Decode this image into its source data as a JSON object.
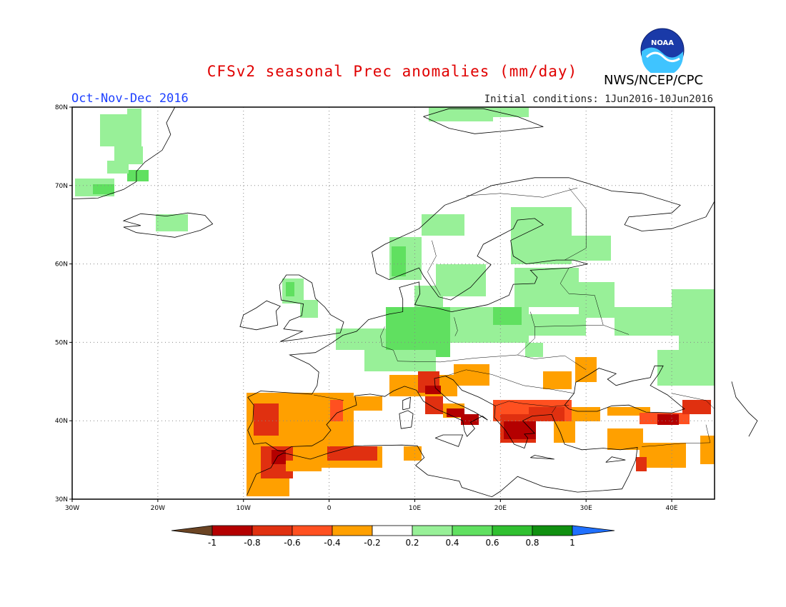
{
  "header": {
    "title": "CFSv2 seasonal Prec anomalies (mm/day)",
    "season": "Oct-Nov-Dec 2016",
    "initial_conditions": "Initial conditions: 1Jun2016-10Jun2016",
    "org": "NWS/NCEP/CPC",
    "logo_text": "NOAA"
  },
  "map": {
    "lon_range": [
      -30,
      45
    ],
    "lat_range": [
      30,
      80
    ],
    "lat_labels": [
      "30N",
      "40N",
      "50N",
      "60N",
      "70N",
      "80N"
    ],
    "lon_labels": [
      "30W",
      "20W",
      "10W",
      "0",
      "10E",
      "20E",
      "30E",
      "40E"
    ]
  },
  "colorbar": {
    "labels": [
      "-1",
      "-0.8",
      "-0.6",
      "-0.4",
      "-0.2",
      "0.2",
      "0.4",
      "0.6",
      "0.8",
      "1"
    ],
    "colors": [
      "#6b4423",
      "#b40000",
      "#e03010",
      "#ff5020",
      "#ffa000",
      "#ffffff",
      "#98f098",
      "#60e060",
      "#30c030",
      "#109010",
      "#2070ff"
    ]
  },
  "colors": {
    "orange": "#ffa000",
    "orange_red": "#ff5020",
    "red": "#e03010",
    "dark_red": "#b40000",
    "light_green": "#98f098",
    "green": "#60e060",
    "dark_green": "#30c030"
  }
}
